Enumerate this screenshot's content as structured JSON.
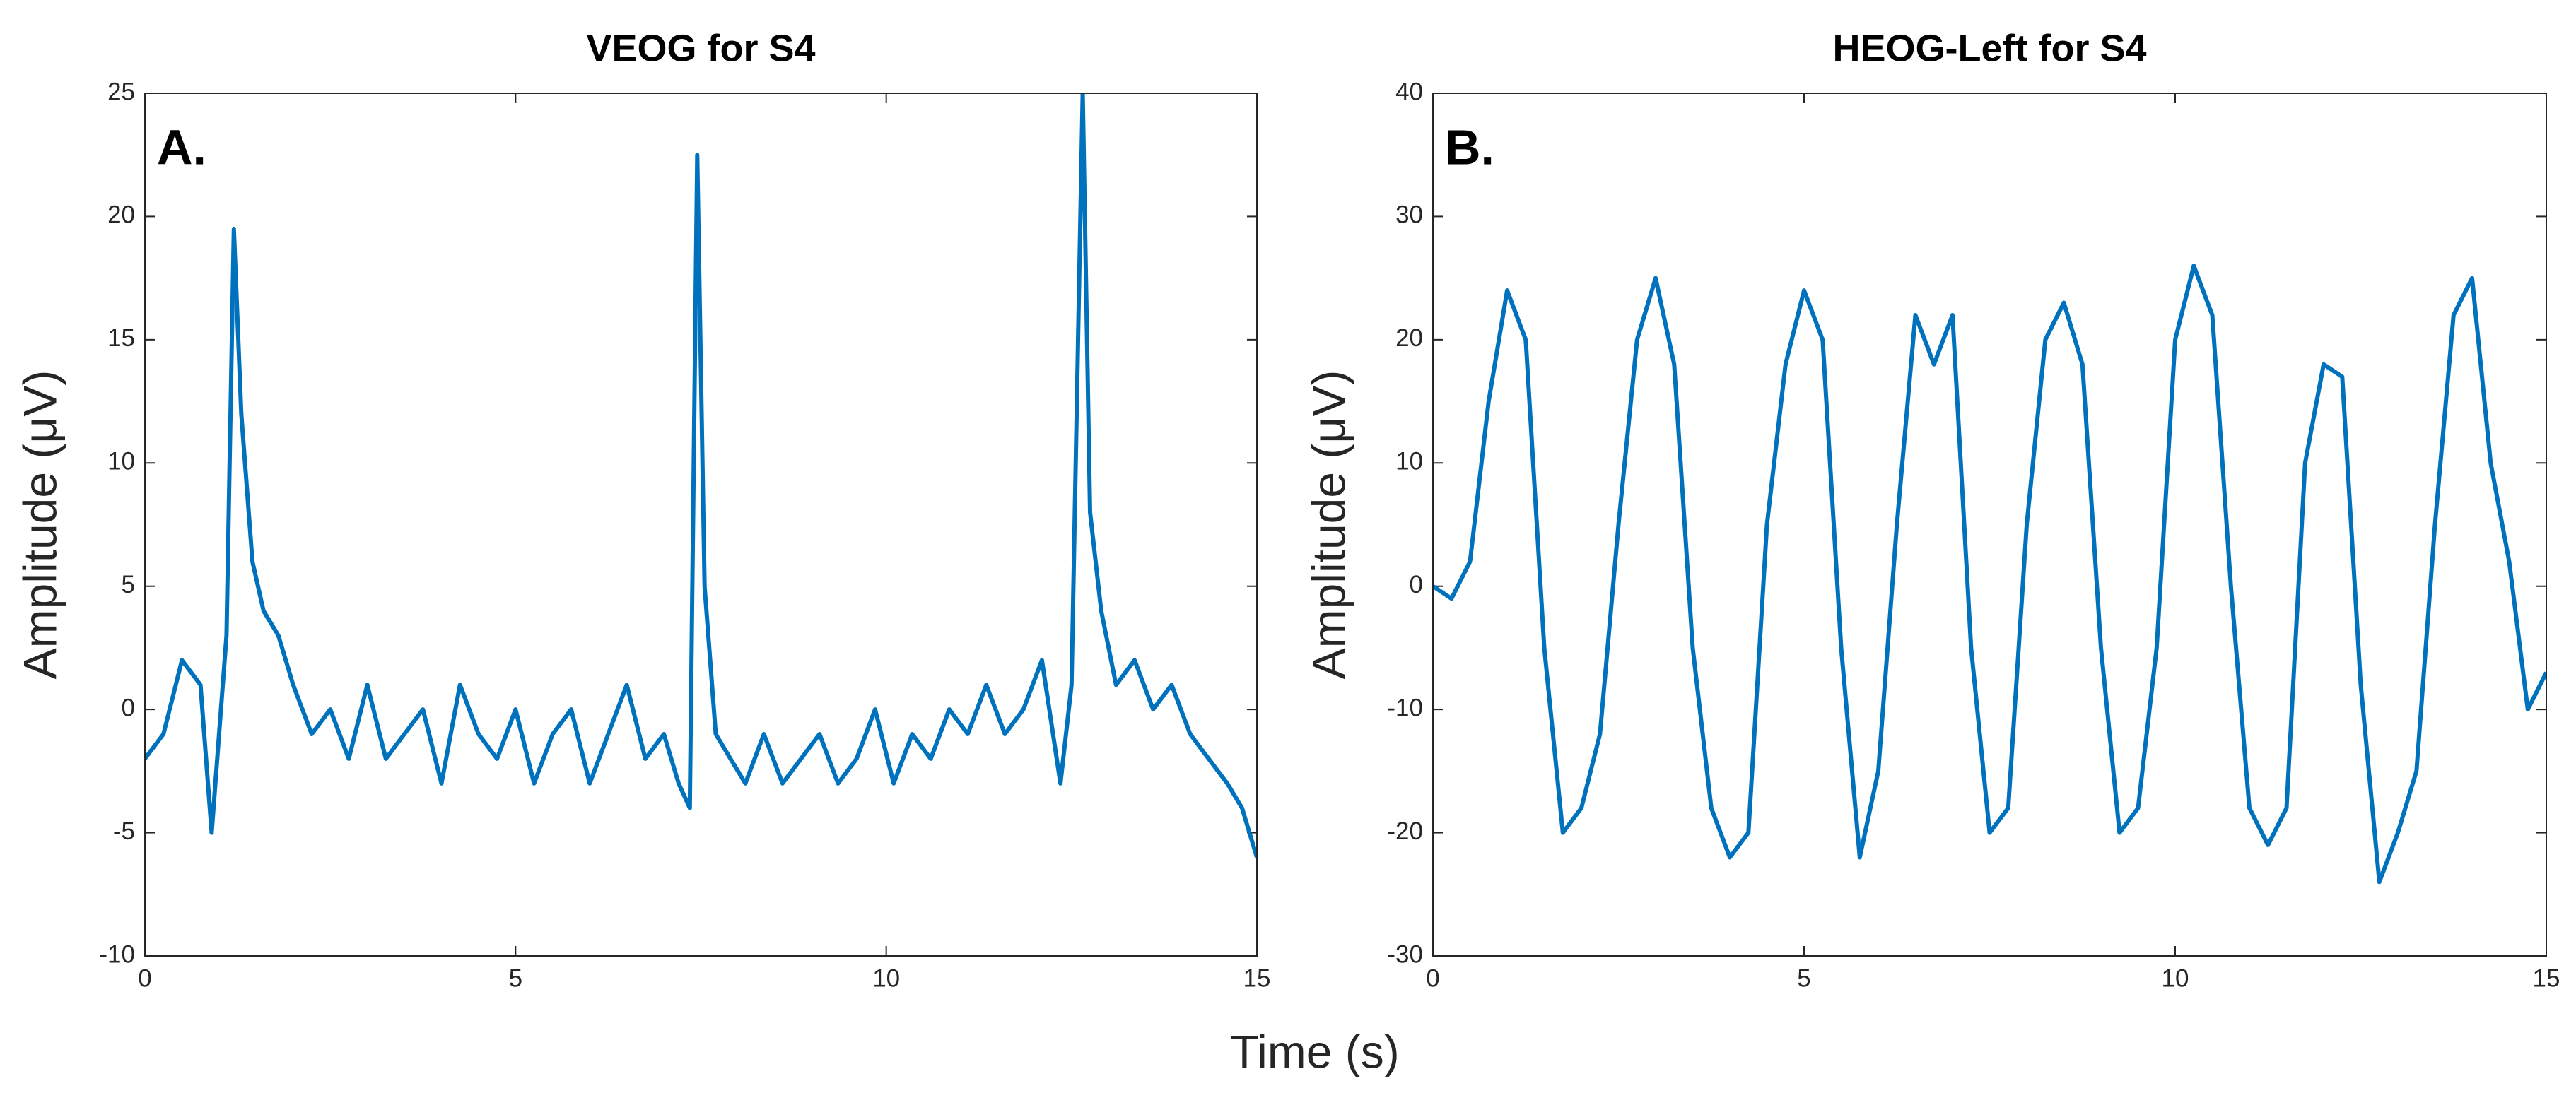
{
  "chart_data": [
    {
      "type": "line",
      "title": "VEOG for S4",
      "annotation": "A.",
      "ylabel": "Amplitude (μV)",
      "color": "#0072bd",
      "x": [
        0,
        0.25,
        0.5,
        0.75,
        0.9,
        1.0,
        1.1,
        1.2,
        1.3,
        1.45,
        1.6,
        1.8,
        2.0,
        2.25,
        2.5,
        2.75,
        3.0,
        3.25,
        3.5,
        3.75,
        4.0,
        4.25,
        4.5,
        4.75,
        5.0,
        5.25,
        5.5,
        5.75,
        6.0,
        6.25,
        6.5,
        6.75,
        7.0,
        7.2,
        7.35,
        7.45,
        7.55,
        7.7,
        7.9,
        8.1,
        8.35,
        8.6,
        8.85,
        9.1,
        9.35,
        9.6,
        9.85,
        10.1,
        10.35,
        10.6,
        10.85,
        11.1,
        11.35,
        11.6,
        11.85,
        12.1,
        12.35,
        12.5,
        12.65,
        12.75,
        12.9,
        13.1,
        13.35,
        13.6,
        13.85,
        14.1,
        14.35,
        14.6,
        14.8,
        15
      ],
      "values": [
        -2,
        -1,
        2,
        1,
        -5,
        -1,
        3,
        19.5,
        12,
        6,
        4,
        3,
        1,
        -1,
        0,
        -2,
        1,
        -2,
        -1,
        0,
        -3,
        1,
        -1,
        -2,
        0,
        -3,
        -1,
        0,
        -3,
        -1,
        1,
        -2,
        -1,
        -3,
        -4,
        22.5,
        5,
        -1,
        -2,
        -3,
        -1,
        -3,
        -2,
        -1,
        -3,
        -2,
        0,
        -3,
        -1,
        -2,
        0,
        -1,
        1,
        -1,
        0,
        2,
        -3,
        1,
        25,
        8,
        4,
        1,
        2,
        0,
        1,
        -1,
        -2,
        -3,
        -4,
        -6
      ],
      "xlim": [
        0,
        15
      ],
      "xticks": [
        0,
        5,
        10,
        15
      ],
      "ylim": [
        -10,
        25
      ],
      "yticks": [
        -10,
        -5,
        0,
        5,
        10,
        15,
        20,
        25
      ]
    },
    {
      "type": "line",
      "title": "HEOG-Left for S4",
      "annotation": "B.",
      "ylabel": "Amplitude (μV)",
      "color": "#0072bd",
      "x": [
        0,
        0.25,
        0.5,
        0.75,
        1.0,
        1.25,
        1.5,
        1.75,
        2.0,
        2.25,
        2.5,
        2.75,
        3.0,
        3.25,
        3.5,
        3.75,
        4.0,
        4.25,
        4.5,
        4.75,
        5.0,
        5.25,
        5.5,
        5.75,
        6.0,
        6.25,
        6.5,
        6.75,
        7.0,
        7.25,
        7.5,
        7.75,
        8.0,
        8.25,
        8.5,
        8.75,
        9.0,
        9.25,
        9.5,
        9.75,
        10.0,
        10.25,
        10.5,
        10.75,
        11.0,
        11.25,
        11.5,
        11.75,
        12.0,
        12.25,
        12.5,
        12.75,
        13.0,
        13.25,
        13.5,
        13.75,
        14.0,
        14.25,
        14.5,
        14.75,
        15
      ],
      "values": [
        0,
        -1,
        2,
        15,
        24,
        20,
        -5,
        -20,
        -18,
        -12,
        5,
        20,
        25,
        18,
        -5,
        -18,
        -22,
        -20,
        5,
        18,
        24,
        20,
        -5,
        -22,
        -15,
        5,
        22,
        18,
        22,
        -5,
        -20,
        -18,
        5,
        20,
        23,
        18,
        -5,
        -20,
        -18,
        -5,
        20,
        26,
        22,
        0,
        -18,
        -21,
        -18,
        10,
        18,
        17,
        -8,
        -24,
        -20,
        -15,
        5,
        22,
        25,
        10,
        2,
        -10,
        -7
      ],
      "xlim": [
        0,
        15
      ],
      "xticks": [
        0,
        5,
        10,
        15
      ],
      "ylim": [
        -30,
        40
      ],
      "yticks": [
        -30,
        -20,
        -10,
        0,
        10,
        20,
        30,
        40
      ]
    }
  ],
  "xlabel": "Time (s)"
}
